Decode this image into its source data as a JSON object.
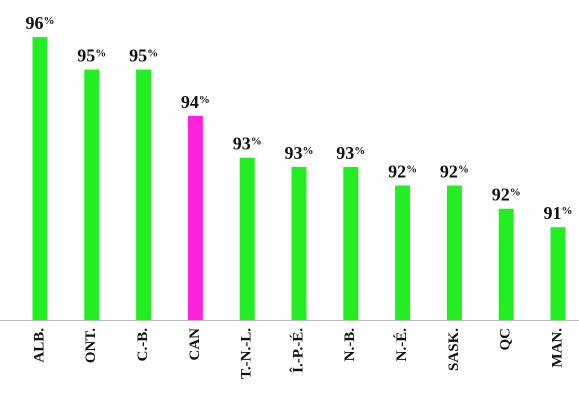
{
  "chart_data": {
    "type": "bar",
    "categories": [
      "ALB.",
      "ONT.",
      "C.-B.",
      "CAN",
      "T.-N.-L.",
      "Î.-P.-É.",
      "N.-B.",
      "N.-É.",
      "SASK.",
      "QC",
      "MAN."
    ],
    "values": [
      95.5,
      94.8,
      94.8,
      93.8,
      92.9,
      92.7,
      92.7,
      92.3,
      92.3,
      91.8,
      91.4
    ],
    "value_labels": [
      "96%",
      "95%",
      "95%",
      "94%",
      "93%",
      "93%",
      "93%",
      "92%",
      "92%",
      "92%",
      "91%"
    ],
    "colors": [
      "#22ee22",
      "#22ee22",
      "#22ee22",
      "#ff22dd",
      "#22ee22",
      "#22ee22",
      "#22ee22",
      "#22ee22",
      "#22ee22",
      "#22ee22",
      "#22ee22"
    ],
    "ylim": [
      89.4,
      96.3
    ]
  }
}
